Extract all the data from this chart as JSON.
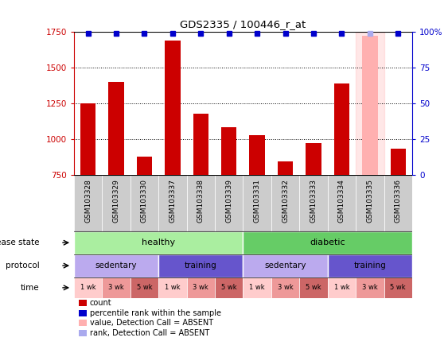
{
  "title": "GDS2335 / 100446_r_at",
  "samples": [
    "GSM103328",
    "GSM103329",
    "GSM103330",
    "GSM103337",
    "GSM103338",
    "GSM103339",
    "GSM103331",
    "GSM103332",
    "GSM103333",
    "GSM103334",
    "GSM103335",
    "GSM103336"
  ],
  "bar_values": [
    1250,
    1400,
    875,
    1690,
    1175,
    1080,
    1025,
    845,
    970,
    1390,
    1720,
    935
  ],
  "absent_bar_index": 10,
  "absent_bar_color": "#ffb0b0",
  "bar_color": "#cc0000",
  "absent_blue_index": 10,
  "absent_blue_color": "#aaaaee",
  "blue_color": "#0000cc",
  "ymin": 750,
  "ymax": 1750,
  "y_ticks": [
    750,
    1000,
    1250,
    1500,
    1750
  ],
  "y2_ticks": [
    0,
    25,
    50,
    75,
    100
  ],
  "y2_tick_labels": [
    "0",
    "25",
    "50",
    "75",
    "100%"
  ],
  "dotted_lines": [
    1000,
    1250,
    1500
  ],
  "disease_healthy_color": "#aaeea0",
  "disease_diabetic_color": "#66cc66",
  "protocol_sedentary_color": "#bbaaee",
  "protocol_training_color": "#6655cc",
  "protocol_spans": [
    [
      0,
      3,
      "sedentary"
    ],
    [
      3,
      6,
      "training"
    ],
    [
      6,
      9,
      "sedentary"
    ],
    [
      9,
      12,
      "training"
    ]
  ],
  "time_color_1wk": "#ffcccc",
  "time_color_3wk": "#ee9999",
  "time_color_5wk": "#cc6666",
  "time_labels": [
    "1 wk",
    "3 wk",
    "5 wk",
    "1 wk",
    "3 wk",
    "5 wk",
    "1 wk",
    "3 wk",
    "5 wk",
    "1 wk",
    "3 wk",
    "5 wk"
  ],
  "legend_items": [
    {
      "color": "#cc0000",
      "label": "count"
    },
    {
      "color": "#0000cc",
      "label": "percentile rank within the sample"
    },
    {
      "color": "#ffb0b0",
      "label": "value, Detection Call = ABSENT"
    },
    {
      "color": "#aaaaee",
      "label": "rank, Detection Call = ABSENT"
    }
  ],
  "row_labels": [
    "disease state",
    "protocol",
    "time"
  ],
  "tick_color_left": "#cc0000",
  "tick_color_right": "#0000cc",
  "sample_box_color": "#cccccc",
  "background_color": "#ffffff"
}
